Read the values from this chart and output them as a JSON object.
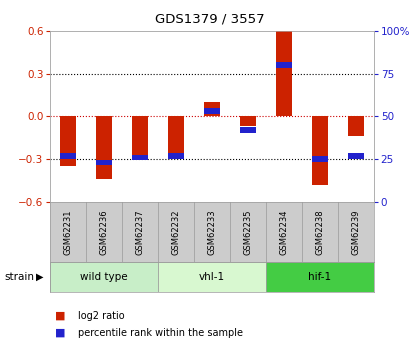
{
  "title": "GDS1379 / 3557",
  "samples": [
    "GSM62231",
    "GSM62236",
    "GSM62237",
    "GSM62232",
    "GSM62233",
    "GSM62235",
    "GSM62234",
    "GSM62238",
    "GSM62239"
  ],
  "log2_ratio": [
    -0.35,
    -0.44,
    -0.3,
    -0.3,
    0.1,
    -0.07,
    0.6,
    -0.48,
    -0.14
  ],
  "percentile_rank": [
    27,
    23,
    26,
    27,
    53,
    42,
    80,
    25,
    27
  ],
  "groups": [
    {
      "label": "wild type",
      "start": 0,
      "end": 3,
      "color": "#c8eec8"
    },
    {
      "label": "vhl-1",
      "start": 3,
      "end": 6,
      "color": "#d8f8d0"
    },
    {
      "label": "hif-1",
      "start": 6,
      "end": 9,
      "color": "#44cc44"
    }
  ],
  "ylim_left": [
    -0.6,
    0.6
  ],
  "ylim_right": [
    0,
    100
  ],
  "bar_color_red": "#cc2200",
  "bar_color_blue": "#2222cc",
  "grid_color": "#000000",
  "zero_line_color": "#cc0000",
  "sample_box_color": "#cccccc",
  "tick_color_left": "#cc2200",
  "tick_color_right": "#2222cc",
  "legend_red": "log2 ratio",
  "legend_blue": "percentile rank within the sample"
}
